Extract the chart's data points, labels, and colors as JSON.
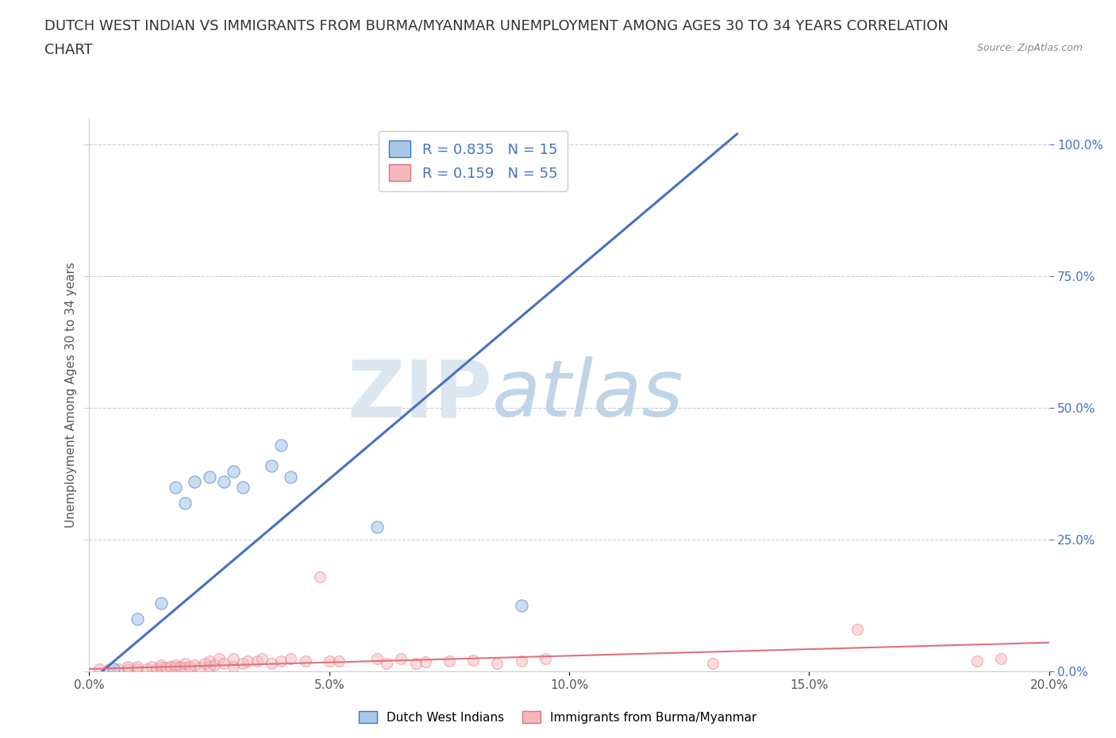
{
  "title_line1": "DUTCH WEST INDIAN VS IMMIGRANTS FROM BURMA/MYANMAR UNEMPLOYMENT AMONG AGES 30 TO 34 YEARS CORRELATION",
  "title_line2": "CHART",
  "source_text": "Source: ZipAtlas.com",
  "ylabel": "Unemployment Among Ages 30 to 34 years",
  "xlim": [
    0.0,
    0.2
  ],
  "ylim": [
    0.0,
    1.05
  ],
  "xticks": [
    0.0,
    0.05,
    0.1,
    0.15,
    0.2
  ],
  "xtick_labels": [
    "0.0%",
    "5.0%",
    "10.0%",
    "15.0%",
    "20.0%"
  ],
  "yticks": [
    0.0,
    0.25,
    0.5,
    0.75,
    1.0
  ],
  "ytick_labels_right": [
    "0.0%",
    "25.0%",
    "50.0%",
    "75.0%",
    "100.0%"
  ],
  "blue_color": "#a8c8e8",
  "pink_color": "#f4b8b8",
  "blue_line_color": "#4472c4",
  "pink_line_color": "#e07080",
  "R_blue": 0.835,
  "N_blue": 15,
  "R_pink": 0.159,
  "N_pink": 55,
  "legend_label_blue": "Dutch West Indians",
  "legend_label_pink": "Immigrants from Burma/Myanmar",
  "watermark_zip": "ZIP",
  "watermark_atlas": "atlas",
  "blue_line_x0": 0.0,
  "blue_line_y0": -0.02,
  "blue_line_x1": 0.135,
  "blue_line_y1": 1.02,
  "pink_line_x0": 0.0,
  "pink_line_y0": 0.005,
  "pink_line_x1": 0.2,
  "pink_line_y1": 0.055,
  "blue_scatter_x": [
    0.005,
    0.01,
    0.015,
    0.018,
    0.02,
    0.022,
    0.025,
    0.028,
    0.03,
    0.032,
    0.038,
    0.04,
    0.042,
    0.06,
    0.09
  ],
  "blue_scatter_y": [
    0.005,
    0.1,
    0.13,
    0.35,
    0.32,
    0.36,
    0.37,
    0.36,
    0.38,
    0.35,
    0.39,
    0.43,
    0.37,
    0.275,
    0.125
  ],
  "pink_scatter_x": [
    0.002,
    0.004,
    0.006,
    0.008,
    0.008,
    0.01,
    0.01,
    0.012,
    0.013,
    0.014,
    0.015,
    0.015,
    0.016,
    0.017,
    0.018,
    0.018,
    0.019,
    0.02,
    0.02,
    0.021,
    0.022,
    0.023,
    0.024,
    0.025,
    0.025,
    0.026,
    0.027,
    0.028,
    0.03,
    0.03,
    0.032,
    0.033,
    0.035,
    0.036,
    0.038,
    0.04,
    0.042,
    0.045,
    0.048,
    0.05,
    0.052,
    0.06,
    0.062,
    0.065,
    0.068,
    0.07,
    0.075,
    0.08,
    0.085,
    0.09,
    0.095,
    0.13,
    0.16,
    0.185,
    0.19
  ],
  "pink_scatter_y": [
    0.005,
    0.005,
    0.005,
    0.005,
    0.01,
    0.005,
    0.01,
    0.005,
    0.01,
    0.005,
    0.008,
    0.012,
    0.008,
    0.01,
    0.008,
    0.012,
    0.01,
    0.008,
    0.015,
    0.01,
    0.012,
    0.008,
    0.015,
    0.01,
    0.02,
    0.012,
    0.025,
    0.015,
    0.01,
    0.025,
    0.015,
    0.02,
    0.02,
    0.025,
    0.015,
    0.02,
    0.025,
    0.02,
    0.18,
    0.02,
    0.02,
    0.025,
    0.015,
    0.025,
    0.015,
    0.018,
    0.02,
    0.022,
    0.015,
    0.02,
    0.025,
    0.015,
    0.08,
    0.02,
    0.025
  ],
  "background_color": "#ffffff",
  "grid_color": "#cccccc",
  "axis_color": "#555555",
  "right_axis_color": "#4472c4",
  "title_fontsize": 13,
  "label_fontsize": 11,
  "tick_fontsize": 11,
  "watermark_zip_color": "#dce6f0",
  "watermark_atlas_color": "#c0d4e8",
  "watermark_fontsize": 72
}
